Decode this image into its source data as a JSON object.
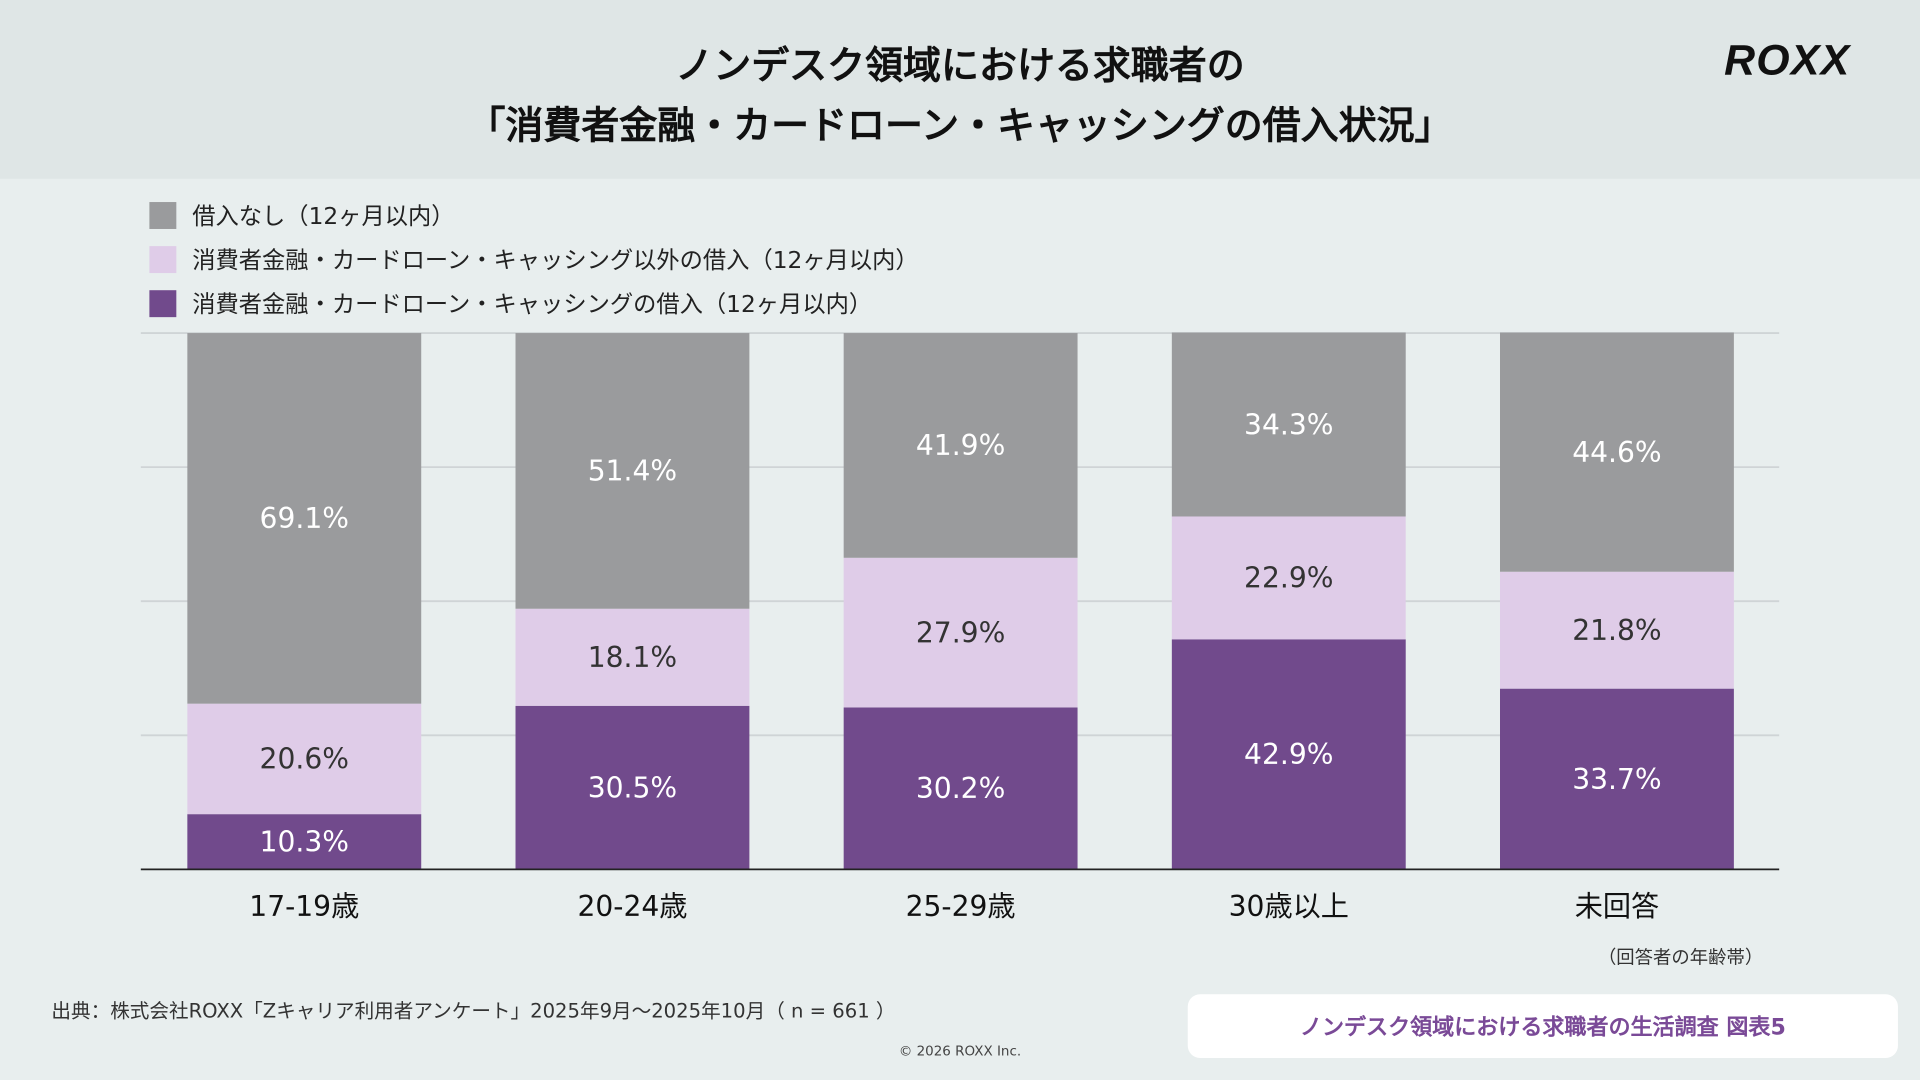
{
  "header": {
    "title_line1": "ノンデスク領域における求職者の",
    "title_line2": "「消費者金融・カードローン・キャッシングの借入状況」",
    "logo": "ROXX"
  },
  "chart_data": {
    "type": "bar",
    "stacked": true,
    "orientation": "vertical",
    "categories": [
      "17-19歳",
      "20-24歳",
      "25-29歳",
      "30歳以上",
      "未回答"
    ],
    "series": [
      {
        "name": "消費者金融・カードローン・キャッシングの借入（12ヶ月以内）",
        "color": "#714a8c",
        "label_color": "#ffffff",
        "values": [
          10.3,
          30.5,
          30.2,
          42.9,
          33.7
        ]
      },
      {
        "name": "消費者金融・カードローン・キャッシング以外の借入（12ヶ月以内）",
        "color": "#dfcce8",
        "label_color": "#333333",
        "values": [
          20.6,
          18.1,
          27.9,
          22.9,
          21.8
        ]
      },
      {
        "name": "借入なし（12ヶ月以内）",
        "color": "#9a9b9d",
        "label_color": "#ffffff",
        "values": [
          69.1,
          51.4,
          41.9,
          34.3,
          44.6
        ]
      }
    ],
    "legend_order": [
      2,
      1,
      0
    ],
    "legend_placement": "top-left",
    "value_suffix": "%",
    "ylim": [
      0,
      100
    ],
    "grid": true,
    "xlabel": "（回答者の年齢帯）"
  },
  "footer": {
    "source": "出典：株式会社ROXX「Zキャリア利用者アンケート」2025年9月〜2025年10月（ n = 661 ）",
    "badge": "ノンデスク領域における求職者の生活調査 図表5",
    "copyright": "© 2026 ROXX Inc."
  }
}
